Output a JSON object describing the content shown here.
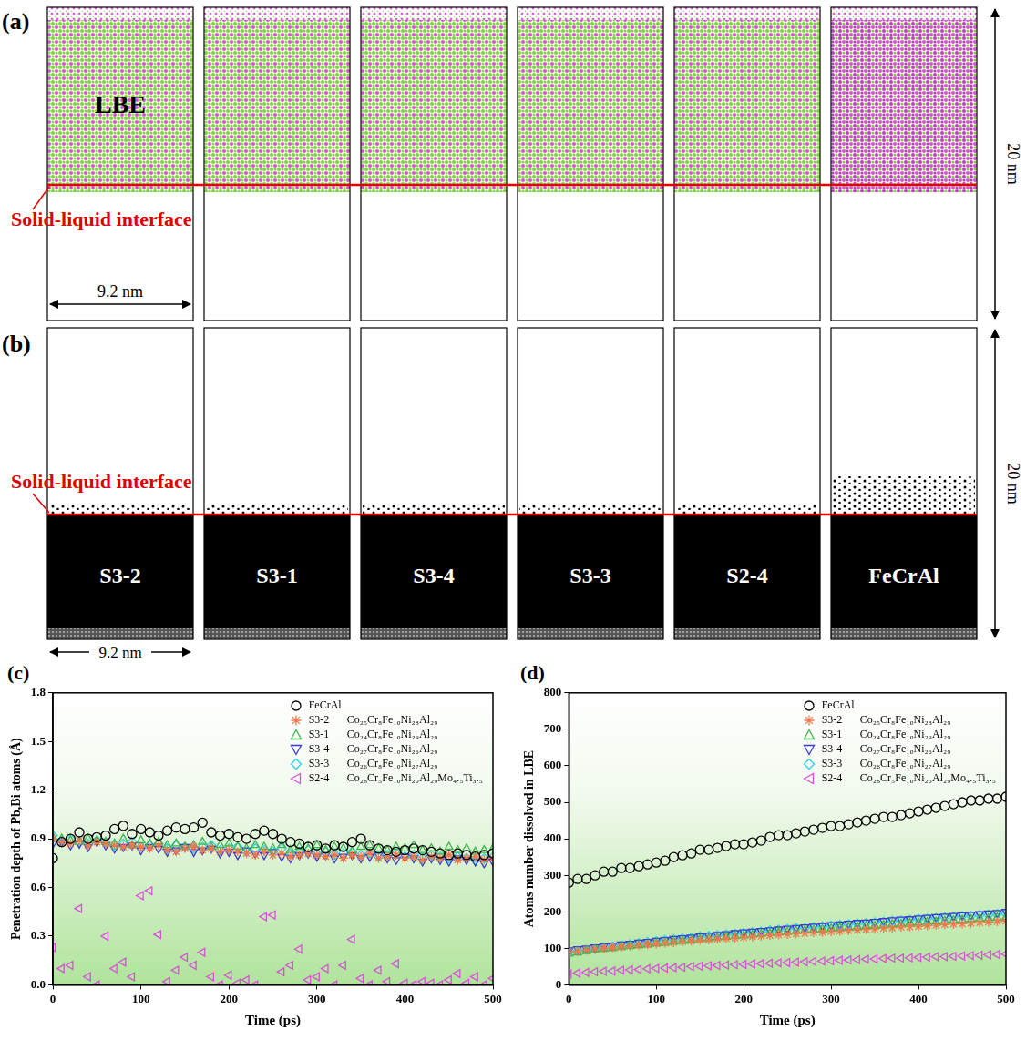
{
  "diagram": {
    "panel_a": {
      "label": "(a)",
      "liquid_label": "LBE",
      "interface_label": "Solid-liquid interface",
      "width_label": "9.2 nm",
      "height_label": "20 nm"
    },
    "panel_b": {
      "label": "(b)",
      "interface_label": "Solid-liquid interface",
      "width_label": "9.2 nm",
      "height_label": "20 nm",
      "samples": [
        "S3-2",
        "S3-1",
        "S3-4",
        "S3-3",
        "S2-4",
        "FeCrAl"
      ]
    }
  },
  "chart_data": [
    {
      "type": "scatter",
      "panel_label": "(c)",
      "x_label": "Time (ps)",
      "y_label": "Penetration depth of Pb,Bi atoms (Å)",
      "x": [
        0,
        10,
        20,
        30,
        40,
        50,
        60,
        70,
        80,
        90,
        100,
        110,
        120,
        130,
        140,
        150,
        160,
        170,
        180,
        190,
        200,
        210,
        220,
        230,
        240,
        250,
        260,
        270,
        280,
        290,
        300,
        310,
        320,
        330,
        340,
        350,
        360,
        370,
        380,
        390,
        400,
        410,
        420,
        430,
        440,
        450,
        460,
        470,
        480,
        490,
        500
      ],
      "xlim": [
        0,
        500
      ],
      "xticks": [
        0,
        100,
        200,
        300,
        400,
        500
      ],
      "ylim": [
        0,
        1.8
      ],
      "yticks": [
        {
          "value": 0,
          "label": "0.0"
        },
        0.3,
        0.6,
        0.9,
        1.2,
        1.5,
        1.8
      ],
      "grid": false,
      "legend": "top-right",
      "series": [
        {
          "name": "FeCrAl",
          "color": "#000000",
          "marker": "circle",
          "values": [
            0.78,
            0.88,
            0.9,
            0.94,
            0.9,
            0.91,
            0.92,
            0.96,
            0.98,
            0.93,
            0.96,
            0.94,
            0.92,
            0.95,
            0.97,
            0.96,
            0.97,
            1.0,
            0.94,
            0.92,
            0.93,
            0.91,
            0.9,
            0.93,
            0.95,
            0.93,
            0.9,
            0.88,
            0.87,
            0.85,
            0.86,
            0.84,
            0.86,
            0.85,
            0.88,
            0.9,
            0.86,
            0.84,
            0.83,
            0.82,
            0.83,
            0.84,
            0.83,
            0.82,
            0.81,
            0.8,
            0.81,
            0.8,
            0.79,
            0.8,
            0.81
          ]
        },
        {
          "name": "S3-2",
          "composition": "Co₂₅Cr₈Fe₁₀Ni₂₈Al₂₉",
          "color": "#f0784a",
          "marker": "star",
          "values": [
            0.9,
            0.88,
            0.87,
            0.89,
            0.86,
            0.88,
            0.87,
            0.86,
            0.85,
            0.86,
            0.85,
            0.84,
            0.86,
            0.83,
            0.82,
            0.84,
            0.85,
            0.83,
            0.84,
            0.82,
            0.83,
            0.82,
            0.81,
            0.8,
            0.82,
            0.8,
            0.81,
            0.79,
            0.8,
            0.81,
            0.8,
            0.79,
            0.8,
            0.78,
            0.8,
            0.79,
            0.81,
            0.78,
            0.79,
            0.8,
            0.78,
            0.79,
            0.77,
            0.79,
            0.78,
            0.8,
            0.77,
            0.78,
            0.79,
            0.77,
            0.78
          ]
        },
        {
          "name": "S3-1",
          "composition": "Co₂₄Cr₈Fe₁₀Ni₂₉Al₂₉",
          "color": "#3cb44b",
          "marker": "triangle",
          "values": [
            0.91,
            0.9,
            0.89,
            0.88,
            0.9,
            0.89,
            0.88,
            0.87,
            0.9,
            0.86,
            0.89,
            0.87,
            0.88,
            0.86,
            0.87,
            0.85,
            0.86,
            0.88,
            0.85,
            0.86,
            0.87,
            0.85,
            0.84,
            0.86,
            0.85,
            0.84,
            0.86,
            0.83,
            0.85,
            0.84,
            0.86,
            0.83,
            0.85,
            0.84,
            0.82,
            0.85,
            0.86,
            0.84,
            0.83,
            0.85,
            0.84,
            0.86,
            0.83,
            0.84,
            0.82,
            0.85,
            0.83,
            0.84,
            0.82,
            0.83,
            0.84
          ]
        },
        {
          "name": "S3-4",
          "composition": "Co₂₇Cr₈Fe₁₀Ni₂₆Al₂₉",
          "color": "#3b3bcf",
          "marker": "triangle_down",
          "values": [
            0.87,
            0.88,
            0.86,
            0.87,
            0.85,
            0.88,
            0.86,
            0.84,
            0.85,
            0.86,
            0.83,
            0.85,
            0.84,
            0.82,
            0.83,
            0.85,
            0.82,
            0.83,
            0.84,
            0.81,
            0.82,
            0.8,
            0.83,
            0.81,
            0.8,
            0.82,
            0.79,
            0.78,
            0.8,
            0.81,
            0.79,
            0.8,
            0.78,
            0.79,
            0.8,
            0.78,
            0.79,
            0.8,
            0.78,
            0.77,
            0.79,
            0.78,
            0.76,
            0.78,
            0.77,
            0.76,
            0.78,
            0.77,
            0.76,
            0.75,
            0.76
          ]
        },
        {
          "name": "S3-3",
          "composition": "Co₂₆Cr₈Fe₁₀Ni₂₇Al₂₉",
          "color": "#33d1e6",
          "marker": "diamond",
          "values": [
            0.92,
            0.89,
            0.9,
            0.88,
            0.87,
            0.89,
            0.88,
            0.86,
            0.87,
            0.88,
            0.85,
            0.86,
            0.87,
            0.84,
            0.86,
            0.85,
            0.84,
            0.85,
            0.86,
            0.83,
            0.84,
            0.85,
            0.82,
            0.84,
            0.83,
            0.82,
            0.84,
            0.81,
            0.82,
            0.83,
            0.81,
            0.82,
            0.8,
            0.81,
            0.82,
            0.8,
            0.81,
            0.79,
            0.8,
            0.81,
            0.79,
            0.8,
            0.78,
            0.8,
            0.79,
            0.78,
            0.79,
            0.78,
            0.77,
            0.78,
            0.79
          ]
        },
        {
          "name": "S2-4",
          "composition": "Co₂₈Cr₅Fe₁₀Ni₂₀Al₂₉Mo₄.₅Ti₃.₅",
          "color": "#d94fd9",
          "marker": "triangle_left",
          "values": [
            0.23,
            0.1,
            0.12,
            0.47,
            0.05,
            0.0,
            0.3,
            0.1,
            0.14,
            0.05,
            0.55,
            0.58,
            0.31,
            0.02,
            0.09,
            0.17,
            0.12,
            0.2,
            0.05,
            0.0,
            0.06,
            0.01,
            0.03,
            0.0,
            0.42,
            0.43,
            0.08,
            0.12,
            0.22,
            0.03,
            0.05,
            0.1,
            0.0,
            0.12,
            0.28,
            0.04,
            0.0,
            0.09,
            0.02,
            0.13,
            0.01,
            0.0,
            0.02,
            0.01,
            0.0,
            0.03,
            0.07,
            0.01,
            0.05,
            0.0,
            0.04
          ]
        }
      ]
    },
    {
      "type": "scatter",
      "panel_label": "(d)",
      "x_label": "Time (ps)",
      "y_label": "Atoms number dissolved in LBE",
      "x": [
        0,
        10,
        20,
        30,
        40,
        50,
        60,
        70,
        80,
        90,
        100,
        110,
        120,
        130,
        140,
        150,
        160,
        170,
        180,
        190,
        200,
        210,
        220,
        230,
        240,
        250,
        260,
        270,
        280,
        290,
        300,
        310,
        320,
        330,
        340,
        350,
        360,
        370,
        380,
        390,
        400,
        410,
        420,
        430,
        440,
        450,
        460,
        470,
        480,
        490,
        500
      ],
      "xlim": [
        0,
        500
      ],
      "xticks": [
        0,
        100,
        200,
        300,
        400,
        500
      ],
      "ylim": [
        0,
        800
      ],
      "yticks": [
        0,
        100,
        200,
        300,
        400,
        500,
        600,
        700,
        800
      ],
      "grid": false,
      "legend": "top-right",
      "series": [
        {
          "name": "FeCrAl",
          "color": "#000000",
          "marker": "circle",
          "values": [
            280,
            290,
            290,
            300,
            310,
            310,
            320,
            320,
            325,
            330,
            335,
            340,
            350,
            355,
            360,
            370,
            370,
            375,
            380,
            385,
            385,
            390,
            395,
            405,
            410,
            410,
            415,
            420,
            425,
            430,
            435,
            435,
            440,
            445,
            450,
            455,
            460,
            460,
            465,
            470,
            475,
            480,
            485,
            490,
            495,
            500,
            505,
            505,
            510,
            510,
            515
          ]
        },
        {
          "name": "S3-2",
          "composition": "Co₂₅Cr₈Fe₁₀Ni₂₈Al₂₉",
          "color": "#f0784a",
          "marker": "star",
          "values": [
            90,
            92,
            95,
            98,
            100,
            102,
            104,
            106,
            108,
            110,
            112,
            114,
            116,
            118,
            120,
            122,
            123,
            125,
            127,
            128,
            130,
            132,
            133,
            135,
            137,
            138,
            140,
            141,
            143,
            144,
            146,
            147,
            149,
            150,
            152,
            153,
            155,
            156,
            158,
            159,
            160,
            162,
            163,
            165,
            166,
            167,
            169,
            170,
            172,
            173,
            175
          ]
        },
        {
          "name": "S3-1",
          "composition": "Co₂₄Cr₈Fe₁₀Ni₂₉Al₂₉",
          "color": "#3cb44b",
          "marker": "triangle",
          "values": [
            85,
            88,
            92,
            96,
            98,
            100,
            103,
            106,
            108,
            110,
            113,
            115,
            118,
            120,
            122,
            125,
            127,
            129,
            131,
            133,
            135,
            137,
            139,
            141,
            143,
            145,
            147,
            149,
            150,
            152,
            154,
            156,
            157,
            159,
            161,
            162,
            164,
            166,
            167,
            169,
            170,
            172,
            173,
            175,
            176,
            178,
            179,
            181,
            182,
            184,
            185
          ]
        },
        {
          "name": "S3-4",
          "composition": "Co₂₇Cr₈Fe₁₀Ni₂₆Al₂₉",
          "color": "#3b3bcf",
          "marker": "triangle_down",
          "values": [
            95,
            98,
            100,
            103,
            106,
            108,
            111,
            113,
            116,
            118,
            121,
            123,
            126,
            128,
            130,
            133,
            135,
            137,
            139,
            142,
            144,
            146,
            148,
            150,
            152,
            154,
            156,
            158,
            160,
            162,
            164,
            166,
            168,
            170,
            171,
            173,
            175,
            177,
            179,
            180,
            182,
            184,
            186,
            187,
            189,
            191,
            192,
            194,
            196,
            197,
            200
          ]
        },
        {
          "name": "S3-3",
          "composition": "Co₂₆Cr₈Fe₁₀Ni₂₇Al₂₉",
          "color": "#33d1e6",
          "marker": "diamond",
          "values": [
            90,
            93,
            96,
            99,
            102,
            105,
            108,
            111,
            114,
            117,
            119,
            122,
            124,
            127,
            129,
            132,
            134,
            136,
            138,
            140,
            142,
            144,
            146,
            149,
            151,
            153,
            155,
            156,
            158,
            160,
            162,
            164,
            166,
            168,
            169,
            171,
            173,
            175,
            176,
            178,
            180,
            181,
            183,
            185,
            186,
            188,
            189,
            191,
            192,
            194,
            195
          ]
        },
        {
          "name": "S2-4",
          "composition": "Co₂₈Cr₅Fe₁₀Ni₂₀Al₂₉Mo₄.₅Ti₃.₅",
          "color": "#d94fd9",
          "marker": "triangle_left",
          "values": [
            30,
            32,
            34,
            36,
            37,
            38,
            40,
            41,
            42,
            44,
            45,
            46,
            47,
            48,
            50,
            51,
            52,
            53,
            54,
            55,
            56,
            57,
            58,
            59,
            60,
            61,
            62,
            63,
            64,
            65,
            66,
            67,
            68,
            69,
            70,
            71,
            72,
            73,
            73,
            74,
            75,
            76,
            77,
            77,
            78,
            79,
            80,
            81,
            82,
            83,
            84
          ]
        }
      ]
    }
  ]
}
